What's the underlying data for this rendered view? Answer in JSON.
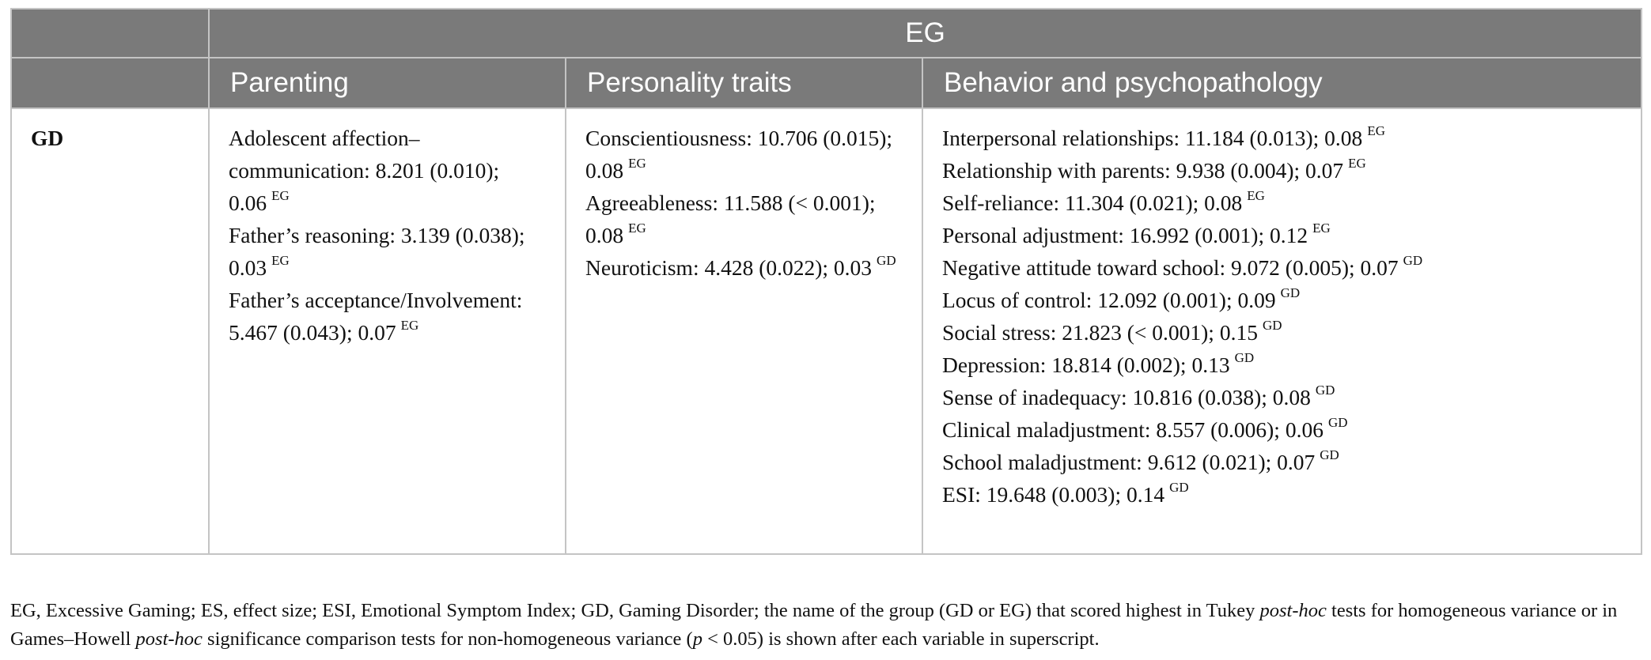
{
  "header": {
    "group": "EG",
    "columns": [
      "Parenting",
      "Personality traits",
      "Behavior and psychopathology"
    ]
  },
  "row": {
    "label": "GD",
    "parenting": [
      {
        "text": "Adolescent affection–communication: 8.201 (0.010); 0.06",
        "sup": "EG"
      },
      {
        "text": "Father’s reasoning: 3.139 (0.038); 0.03",
        "sup": "EG"
      },
      {
        "text": "Father’s acceptance/Involvement: 5.467 (0.043); 0.07",
        "sup": "EG"
      }
    ],
    "personality": [
      {
        "text": "Conscientiousness: 10.706 (0.015); 0.08",
        "sup": "EG"
      },
      {
        "text": "Agreeableness: 11.588 (< 0.001); 0.08",
        "sup": "EG"
      },
      {
        "text": "Neuroticism: 4.428 (0.022); 0.03",
        "sup": "GD"
      }
    ],
    "behavior": [
      {
        "text": "Interpersonal relationships: 11.184 (0.013); 0.08",
        "sup": "EG"
      },
      {
        "text": "Relationship with parents: 9.938 (0.004); 0.07",
        "sup": "EG"
      },
      {
        "text": "Self-reliance: 11.304 (0.021); 0.08",
        "sup": "EG"
      },
      {
        "text": "Personal adjustment: 16.992 (0.001); 0.12",
        "sup": "EG"
      },
      {
        "text": "Negative attitude toward school: 9.072 (0.005); 0.07",
        "sup": "GD"
      },
      {
        "text": "Locus of control: 12.092 (0.001); 0.09",
        "sup": "GD"
      },
      {
        "text": "Social stress: 21.823 (< 0.001); 0.15",
        "sup": "GD"
      },
      {
        "text": "Depression: 18.814 (0.002); 0.13",
        "sup": "GD"
      },
      {
        "text": "Sense of inadequacy: 10.816 (0.038); 0.08",
        "sup": "GD"
      },
      {
        "text": "Clinical maladjustment: 8.557 (0.006); 0.06",
        "sup": "GD"
      },
      {
        "text": "School maladjustment: 9.612 (0.021); 0.07",
        "sup": "GD"
      },
      {
        "text": "ESI: 19.648 (0.003); 0.14",
        "sup": "GD"
      }
    ]
  },
  "footnote": {
    "part1": "EG, Excessive Gaming; ES, effect size; ESI, Emotional Symptom Index; GD, Gaming Disorder; the name of the group (GD or EG) that scored highest in Tukey ",
    "italic1": "post-hoc",
    "part2": " tests for homogeneous variance or in Games–Howell ",
    "italic2": "post-hoc",
    "part3": " significance comparison tests for non-homogeneous variance (",
    "italic3": "p",
    "part4": " < 0.05) is shown after each variable in superscript."
  }
}
